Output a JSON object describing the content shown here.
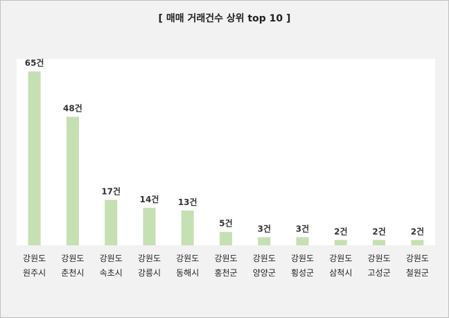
{
  "chart_data": {
    "type": "bar",
    "title": "[ 매매 거래건수 상위 top 10 ]",
    "categories": [
      [
        "강원도",
        "원주시"
      ],
      [
        "강원도",
        "춘천시"
      ],
      [
        "강원도",
        "속초시"
      ],
      [
        "강원도",
        "강릉시"
      ],
      [
        "강원도",
        "동해시"
      ],
      [
        "강원도",
        "홍천군"
      ],
      [
        "강원도",
        "양양군"
      ],
      [
        "강원도",
        "횡성군"
      ],
      [
        "강원도",
        "삼척시"
      ],
      [
        "강원도",
        "고성군"
      ],
      [
        "강원도",
        "철원군"
      ]
    ],
    "values": [
      65,
      48,
      17,
      14,
      13,
      5,
      3,
      3,
      2,
      2,
      2
    ],
    "value_labels": [
      "65건",
      "48건",
      "17건",
      "14건",
      "13건",
      "5건",
      "3건",
      "3건",
      "2건",
      "2건",
      "2건"
    ],
    "xlabel": "",
    "ylabel": "",
    "ylim": [
      0,
      70
    ],
    "grid": false,
    "legend": "none",
    "colors": {
      "bar": "#c5e0b3",
      "plot_background": "#ffffff",
      "chart_background": "#f2f2f2"
    }
  }
}
